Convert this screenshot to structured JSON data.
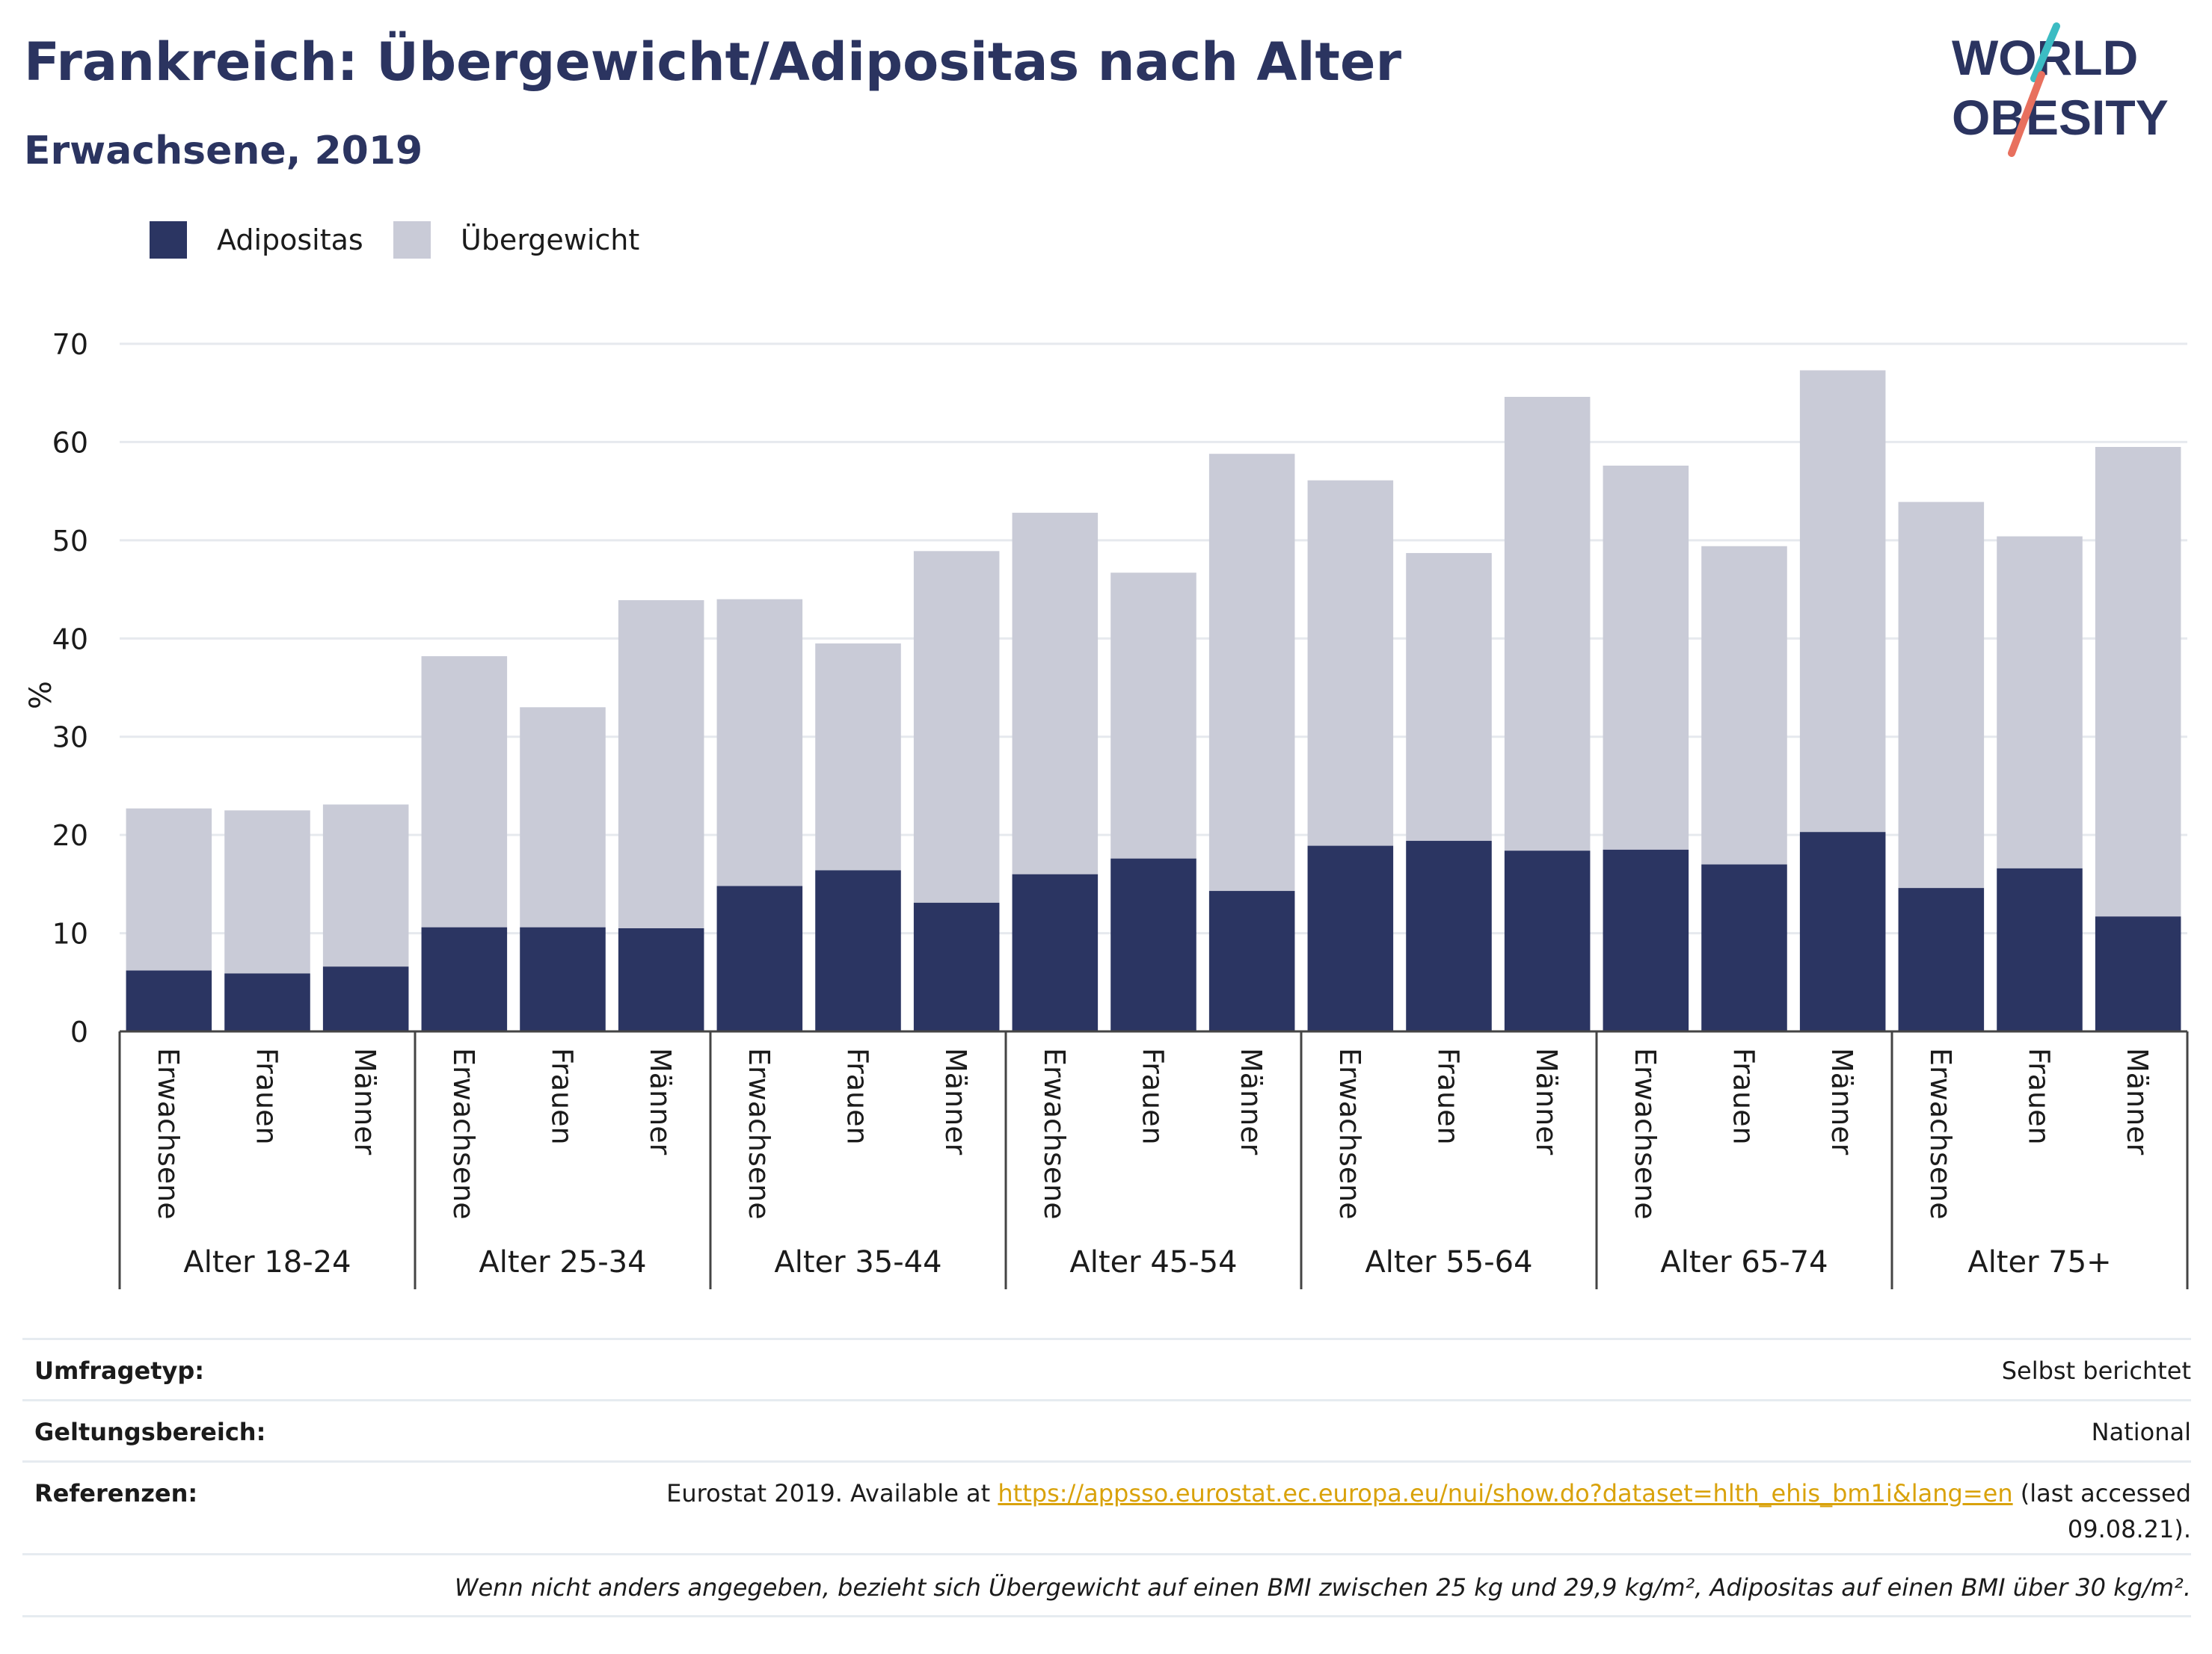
{
  "title": "Frankreich: Übergewicht/Adipositas nach Alter",
  "subtitle": "Erwachsene, 2019",
  "logo": {
    "line1": "WORLD",
    "line2": "OBESITY"
  },
  "legend": [
    {
      "label": "Adipositas",
      "color": "#2b3562"
    },
    {
      "label": "Übergewicht",
      "color": "#c9cbd7"
    }
  ],
  "chart_data": {
    "type": "bar",
    "stacked": true,
    "ylabel": "%",
    "ylim": [
      0,
      70
    ],
    "yticks": [
      0,
      10,
      20,
      30,
      40,
      50,
      60,
      70
    ],
    "grid": true,
    "legend_position": "top-left",
    "groups": [
      "Alter 18-24",
      "Alter 25-34",
      "Alter 35-44",
      "Alter 45-54",
      "Alter 55-64",
      "Alter 65-74",
      "Alter 75+"
    ],
    "subcategories": [
      "Erwachsene",
      "Frauen",
      "Männer"
    ],
    "series": [
      {
        "name": "Adipositas",
        "color": "#2b3562",
        "values": [
          6.2,
          5.9,
          6.6,
          10.6,
          10.6,
          10.5,
          14.8,
          16.4,
          13.1,
          16.0,
          17.6,
          14.3,
          18.9,
          19.4,
          18.4,
          18.5,
          17.0,
          20.3,
          14.6,
          16.6,
          11.7
        ]
      },
      {
        "name": "Übergewicht",
        "color": "#c9cbd7",
        "values": [
          16.5,
          16.6,
          16.5,
          27.6,
          22.4,
          33.4,
          29.2,
          23.1,
          35.8,
          36.8,
          29.1,
          44.5,
          37.2,
          29.3,
          46.2,
          39.1,
          32.4,
          47.0,
          39.3,
          33.8,
          47.8
        ]
      }
    ]
  },
  "info": {
    "survey_label": "Umfragetyp:",
    "survey_value": "Selbst berichtet",
    "scope_label": "Geltungsbereich:",
    "scope_value": "National",
    "ref_label": "Referenzen:",
    "ref_prefix": "Eurostat 2019. Available at ",
    "ref_link": "https://appsso.eurostat.ec.europa.eu/nui/show.do?dataset=hlth_ehis_bm1i&lang=en",
    "ref_suffix": " (last accessed",
    "ref_line2": "09.08.21).",
    "footnote": "Wenn nicht anders angegeben, bezieht sich Übergewicht auf einen BMI zwischen 25 kg und 29,9 kg/m², Adipositas auf einen BMI über 30 kg/m²."
  }
}
